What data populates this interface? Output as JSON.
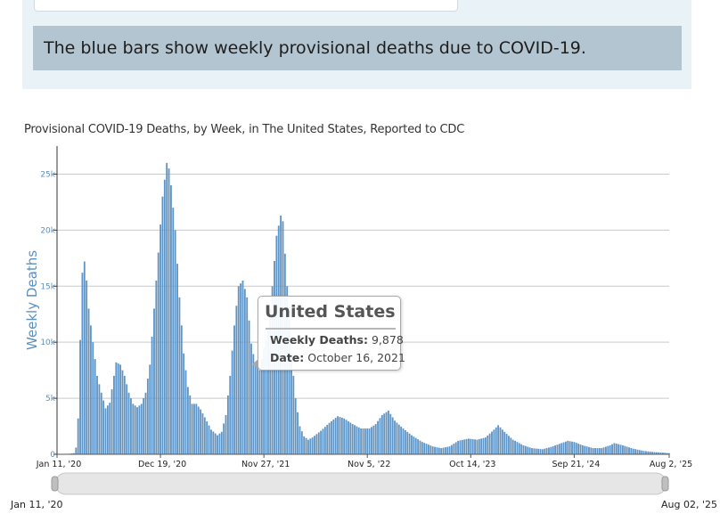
{
  "banner": {
    "text": "The blue bars show weekly provisional deaths due to COVID-19."
  },
  "chart_data": {
    "type": "bar",
    "title": "Provisional COVID-19 Deaths, by Week, in The United States, Reported to CDC",
    "xlabel": "",
    "ylabel": "Weekly Deaths",
    "ylim": [
      0,
      27500
    ],
    "yticks": [
      0,
      5000,
      10000,
      15000,
      20000,
      25000
    ],
    "ytick_labels": [
      "0",
      "5k",
      "10k",
      "15k",
      "20k",
      "25k"
    ],
    "xtick_labels": [
      "Jan 11, '20",
      "Dec 19, '20",
      "Nov 27, '21",
      "Nov 5, '22",
      "Oct 14, '23",
      "Sep 21, '24",
      "Aug 2, '25"
    ],
    "xtick_dates": [
      "2020-01-11",
      "2020-12-19",
      "2021-11-27",
      "2022-11-05",
      "2023-10-14",
      "2024-09-21",
      "2025-08-02"
    ],
    "grid": true,
    "bar_color": "#5f95c6",
    "week_start": "2020-01-11",
    "week_end": "2025-08-02",
    "series": [
      {
        "name": "Weekly Deaths",
        "anchors": [
          [
            "2020-01-11",
            0
          ],
          [
            "2020-02-22",
            50
          ],
          [
            "2020-03-07",
            100
          ],
          [
            "2020-03-14",
            600
          ],
          [
            "2020-03-21",
            3200
          ],
          [
            "2020-03-28",
            10200
          ],
          [
            "2020-04-04",
            16200
          ],
          [
            "2020-04-11",
            17200
          ],
          [
            "2020-04-18",
            15500
          ],
          [
            "2020-04-25",
            13000
          ],
          [
            "2020-05-09",
            10000
          ],
          [
            "2020-05-23",
            7000
          ],
          [
            "2020-06-06",
            5500
          ],
          [
            "2020-06-20",
            4100
          ],
          [
            "2020-07-04",
            4600
          ],
          [
            "2020-07-18",
            7000
          ],
          [
            "2020-07-25",
            8200
          ],
          [
            "2020-08-08",
            8000
          ],
          [
            "2020-08-22",
            7000
          ],
          [
            "2020-09-05",
            5500
          ],
          [
            "2020-09-19",
            4500
          ],
          [
            "2020-10-03",
            4200
          ],
          [
            "2020-10-17",
            4500
          ],
          [
            "2020-10-31",
            5500
          ],
          [
            "2020-11-14",
            8000
          ],
          [
            "2020-11-28",
            13000
          ],
          [
            "2020-12-12",
            18000
          ],
          [
            "2020-12-26",
            23000
          ],
          [
            "2021-01-09",
            26000
          ],
          [
            "2021-01-16",
            25500
          ],
          [
            "2021-01-23",
            24000
          ],
          [
            "2021-02-06",
            20000
          ],
          [
            "2021-02-20",
            14000
          ],
          [
            "2021-03-06",
            9000
          ],
          [
            "2021-03-20",
            6000
          ],
          [
            "2021-04-03",
            4500
          ],
          [
            "2021-04-17",
            4500
          ],
          [
            "2021-05-01",
            4000
          ],
          [
            "2021-05-15",
            3300
          ],
          [
            "2021-06-05",
            2200
          ],
          [
            "2021-06-26",
            1700
          ],
          [
            "2021-07-10",
            2000
          ],
          [
            "2021-07-24",
            3500
          ],
          [
            "2021-08-07",
            7000
          ],
          [
            "2021-08-21",
            11500
          ],
          [
            "2021-09-04",
            15000
          ],
          [
            "2021-09-18",
            15500
          ],
          [
            "2021-10-02",
            14000
          ],
          [
            "2021-10-16",
            9878
          ],
          [
            "2021-10-30",
            8000
          ],
          [
            "2021-11-13",
            7500
          ],
          [
            "2021-11-27",
            9500
          ],
          [
            "2021-12-11",
            11000
          ],
          [
            "2021-12-25",
            15000
          ],
          [
            "2022-01-08",
            19500
          ],
          [
            "2022-01-22",
            21300
          ],
          [
            "2022-01-29",
            20800
          ],
          [
            "2022-02-12",
            15000
          ],
          [
            "2022-02-26",
            9000
          ],
          [
            "2022-03-12",
            5000
          ],
          [
            "2022-03-26",
            2500
          ],
          [
            "2022-04-09",
            1600
          ],
          [
            "2022-04-23",
            1300
          ],
          [
            "2022-05-07",
            1500
          ],
          [
            "2022-06-04",
            2100
          ],
          [
            "2022-07-02",
            2800
          ],
          [
            "2022-07-30",
            3400
          ],
          [
            "2022-08-20",
            3200
          ],
          [
            "2022-09-17",
            2700
          ],
          [
            "2022-10-15",
            2300
          ],
          [
            "2022-11-12",
            2300
          ],
          [
            "2022-12-03",
            2700
          ],
          [
            "2022-12-24",
            3500
          ],
          [
            "2023-01-14",
            3900
          ],
          [
            "2023-02-04",
            3000
          ],
          [
            "2023-03-04",
            2300
          ],
          [
            "2023-04-01",
            1700
          ],
          [
            "2023-05-06",
            1100
          ],
          [
            "2023-06-10",
            700
          ],
          [
            "2023-07-08",
            550
          ],
          [
            "2023-08-05",
            700
          ],
          [
            "2023-09-02",
            1200
          ],
          [
            "2023-10-07",
            1400
          ],
          [
            "2023-11-04",
            1300
          ],
          [
            "2023-12-02",
            1500
          ],
          [
            "2023-12-30",
            2200
          ],
          [
            "2024-01-13",
            2600
          ],
          [
            "2024-02-03",
            2000
          ],
          [
            "2024-03-02",
            1300
          ],
          [
            "2024-04-06",
            800
          ],
          [
            "2024-05-04",
            550
          ],
          [
            "2024-06-08",
            450
          ],
          [
            "2024-07-06",
            650
          ],
          [
            "2024-08-10",
            1000
          ],
          [
            "2024-08-31",
            1200
          ],
          [
            "2024-09-21",
            1100
          ],
          [
            "2024-10-19",
            800
          ],
          [
            "2024-11-23",
            550
          ],
          [
            "2024-12-21",
            550
          ],
          [
            "2025-01-18",
            800
          ],
          [
            "2025-02-01",
            1000
          ],
          [
            "2025-03-01",
            800
          ],
          [
            "2025-04-05",
            500
          ],
          [
            "2025-05-10",
            300
          ],
          [
            "2025-06-14",
            200
          ],
          [
            "2025-07-12",
            150
          ],
          [
            "2025-08-02",
            100
          ]
        ]
      }
    ],
    "tooltip": {
      "title": "United States",
      "value_label": "Weekly Deaths:",
      "value": "9,878",
      "date_label": "Date:",
      "date": "October 16, 2021",
      "date_iso": "2021-10-16"
    },
    "range_selector": {
      "start_label": "Jan 11, '20",
      "end_label": "Aug 02, '25"
    }
  }
}
